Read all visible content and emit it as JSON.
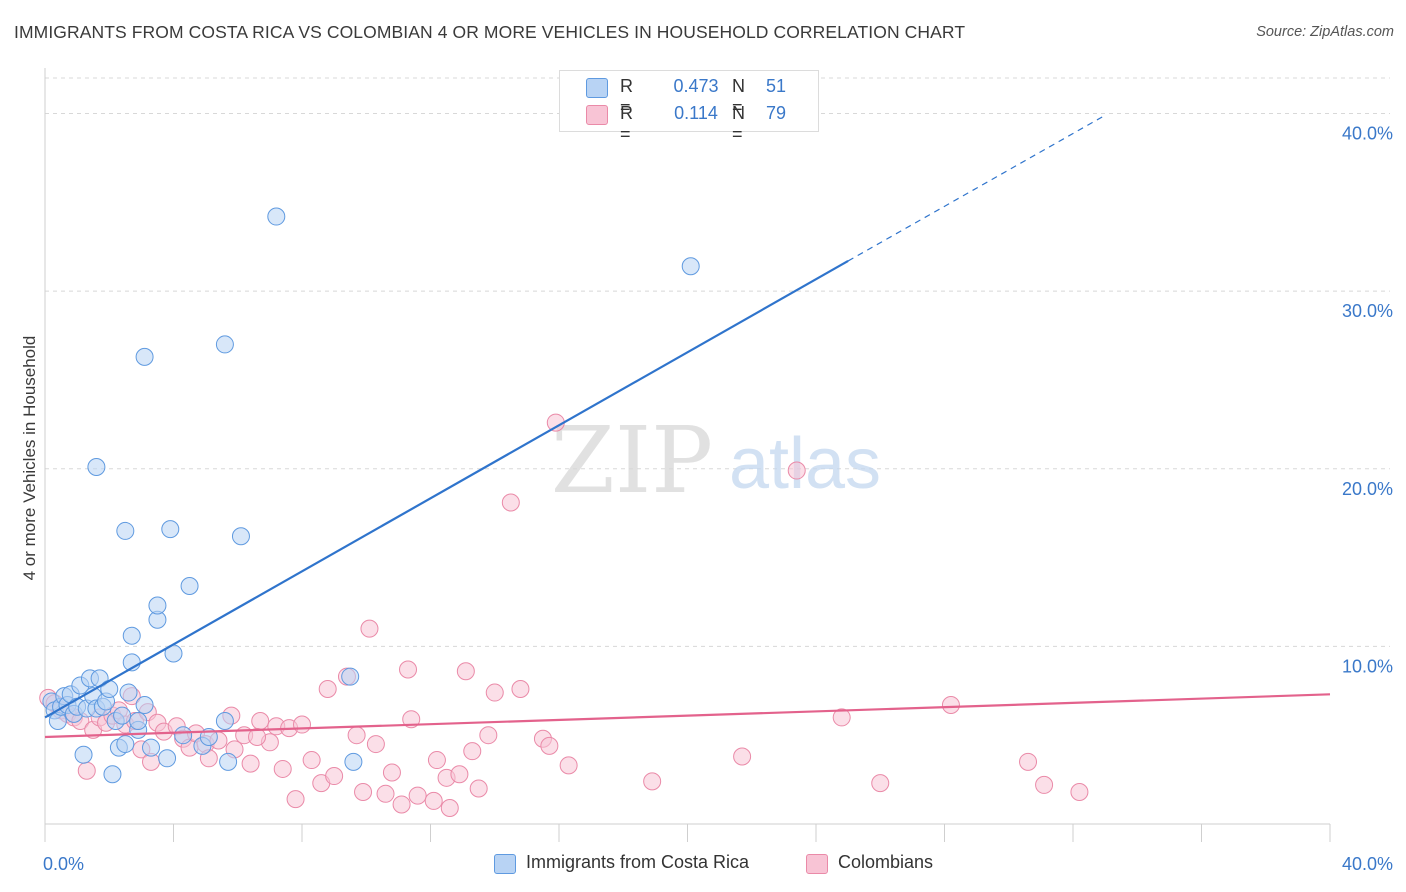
{
  "title": "IMMIGRANTS FROM COSTA RICA VS COLOMBIAN 4 OR MORE VEHICLES IN HOUSEHOLD CORRELATION CHART",
  "source": "Source: ZipAtlas.com",
  "watermark": {
    "zip": "ZIP",
    "atlas": "atlas"
  },
  "colors": {
    "blue_fill": "#b8d3f4",
    "blue_stroke": "#5f9ae0",
    "blue_line": "#2f74cc",
    "pink_fill": "#f8c4d5",
    "pink_stroke": "#ea8aa8",
    "pink_line": "#e3628c",
    "tick_label": "#3a78c9",
    "grid": "#d8d8d8"
  },
  "legend": {
    "rows": [
      {
        "r_label": "R =",
        "r_value": "0.473",
        "n_label": "N =",
        "n_value": "51"
      },
      {
        "r_label": "R =",
        "r_value": "0.114",
        "n_label": "N =",
        "n_value": "79"
      }
    ]
  },
  "chart_data": {
    "type": "scatter",
    "title": "IMMIGRANTS FROM COSTA RICA VS COLOMBIAN 4 OR MORE VEHICLES IN HOUSEHOLD CORRELATION CHART",
    "xlabel": "",
    "ylabel": "4 or more Vehicles in Household",
    "xlim": [
      0,
      40
    ],
    "ylim": [
      0,
      42
    ],
    "x_tick_labels": [
      "0.0%",
      "40.0%"
    ],
    "y_ticks": [
      10,
      20,
      30,
      40
    ],
    "y_tick_labels": [
      "10.0%",
      "20.0%",
      "30.0%",
      "40.0%"
    ],
    "grid": "horizontal dashed",
    "legend_position": "top-center",
    "series": [
      {
        "name": "Immigrants from Costa Rica",
        "color": "#b8d3f4",
        "trend": {
          "x0": 0,
          "y0": 6.0,
          "x1": 25.0,
          "y1": 31.7,
          "dashed_to_x": 33.0,
          "dashed_to_y": 39.9
        },
        "points": [
          [
            0.2,
            6.9
          ],
          [
            0.3,
            6.4
          ],
          [
            0.4,
            5.8
          ],
          [
            0.5,
            6.6
          ],
          [
            0.6,
            7.2
          ],
          [
            0.7,
            6.7
          ],
          [
            0.8,
            7.3
          ],
          [
            0.9,
            6.2
          ],
          [
            1.0,
            6.6
          ],
          [
            1.1,
            7.8
          ],
          [
            1.2,
            3.9
          ],
          [
            1.3,
            6.5
          ],
          [
            1.4,
            8.2
          ],
          [
            1.5,
            7.2
          ],
          [
            1.6,
            6.5
          ],
          [
            1.7,
            8.2
          ],
          [
            1.8,
            6.6
          ],
          [
            1.9,
            6.9
          ],
          [
            2.0,
            7.6
          ],
          [
            2.1,
            2.8
          ],
          [
            2.2,
            5.8
          ],
          [
            2.3,
            4.3
          ],
          [
            2.4,
            6.1
          ],
          [
            2.5,
            4.5
          ],
          [
            2.6,
            7.4
          ],
          [
            2.7,
            9.1
          ],
          [
            2.9,
            5.3
          ],
          [
            3.1,
            6.7
          ],
          [
            3.3,
            4.3
          ],
          [
            3.5,
            11.5
          ],
          [
            3.8,
            3.7
          ],
          [
            4.0,
            9.6
          ],
          [
            4.3,
            5.0
          ],
          [
            4.5,
            13.4
          ],
          [
            4.9,
            4.4
          ],
          [
            5.1,
            4.9
          ],
          [
            5.6,
            5.8
          ],
          [
            5.7,
            3.5
          ],
          [
            7.2,
            34.2
          ],
          [
            5.6,
            27.0
          ],
          [
            3.1,
            26.3
          ],
          [
            1.6,
            20.1
          ],
          [
            2.5,
            16.5
          ],
          [
            3.9,
            16.6
          ],
          [
            6.1,
            16.2
          ],
          [
            3.5,
            12.3
          ],
          [
            2.7,
            10.6
          ],
          [
            9.5,
            8.3
          ],
          [
            9.6,
            3.5
          ],
          [
            20.1,
            31.4
          ],
          [
            2.9,
            5.8
          ]
        ]
      },
      {
        "name": "Colombians",
        "color": "#f8c4d5",
        "trend": {
          "x0": 0,
          "y0": 4.9,
          "x1": 40.0,
          "y1": 7.3
        },
        "points": [
          [
            0.1,
            7.1
          ],
          [
            0.3,
            6.8
          ],
          [
            0.5,
            6.4
          ],
          [
            0.7,
            6.2
          ],
          [
            0.9,
            6.0
          ],
          [
            1.1,
            5.8
          ],
          [
            1.3,
            3.0
          ],
          [
            1.5,
            5.3
          ],
          [
            1.7,
            6.0
          ],
          [
            1.9,
            5.7
          ],
          [
            2.1,
            6.1
          ],
          [
            2.3,
            6.4
          ],
          [
            2.5,
            5.6
          ],
          [
            2.7,
            7.2
          ],
          [
            2.8,
            5.8
          ],
          [
            3.0,
            4.2
          ],
          [
            3.2,
            6.3
          ],
          [
            3.3,
            3.5
          ],
          [
            3.5,
            5.7
          ],
          [
            3.7,
            5.2
          ],
          [
            4.1,
            5.5
          ],
          [
            4.3,
            4.8
          ],
          [
            4.5,
            4.3
          ],
          [
            4.7,
            5.1
          ],
          [
            5.0,
            4.5
          ],
          [
            5.1,
            3.7
          ],
          [
            5.4,
            4.7
          ],
          [
            5.8,
            6.1
          ],
          [
            5.9,
            4.2
          ],
          [
            6.2,
            5.0
          ],
          [
            6.4,
            3.4
          ],
          [
            6.7,
            5.8
          ],
          [
            7.0,
            4.6
          ],
          [
            7.2,
            5.5
          ],
          [
            7.4,
            3.1
          ],
          [
            7.6,
            5.4
          ],
          [
            7.8,
            1.4
          ],
          [
            8.0,
            5.6
          ],
          [
            8.3,
            3.6
          ],
          [
            8.6,
            2.3
          ],
          [
            8.8,
            7.6
          ],
          [
            9.0,
            2.7
          ],
          [
            9.4,
            8.3
          ],
          [
            9.7,
            5.0
          ],
          [
            9.9,
            1.8
          ],
          [
            10.1,
            11.0
          ],
          [
            10.3,
            4.5
          ],
          [
            10.6,
            1.7
          ],
          [
            10.8,
            2.9
          ],
          [
            11.1,
            1.1
          ],
          [
            11.3,
            8.7
          ],
          [
            11.4,
            5.9
          ],
          [
            11.6,
            1.6
          ],
          [
            12.1,
            1.3
          ],
          [
            12.2,
            3.6
          ],
          [
            12.5,
            2.6
          ],
          [
            12.6,
            0.9
          ],
          [
            12.9,
            2.8
          ],
          [
            13.1,
            8.6
          ],
          [
            13.3,
            4.1
          ],
          [
            13.8,
            5.0
          ],
          [
            14.0,
            7.4
          ],
          [
            14.5,
            18.1
          ],
          [
            14.8,
            7.6
          ],
          [
            15.5,
            4.8
          ],
          [
            15.7,
            4.4
          ],
          [
            15.9,
            22.6
          ],
          [
            16.3,
            3.3
          ],
          [
            18.9,
            2.4
          ],
          [
            21.7,
            3.8
          ],
          [
            23.4,
            19.9
          ],
          [
            24.8,
            6.0
          ],
          [
            26.0,
            2.3
          ],
          [
            28.2,
            6.7
          ],
          [
            30.6,
            3.5
          ],
          [
            31.1,
            2.2
          ],
          [
            32.2,
            1.8
          ],
          [
            13.5,
            2.0
          ],
          [
            6.6,
            4.9
          ]
        ]
      }
    ]
  },
  "bottom_legend": [
    {
      "label": "Immigrants from Costa Rica"
    },
    {
      "label": "Colombians"
    }
  ]
}
